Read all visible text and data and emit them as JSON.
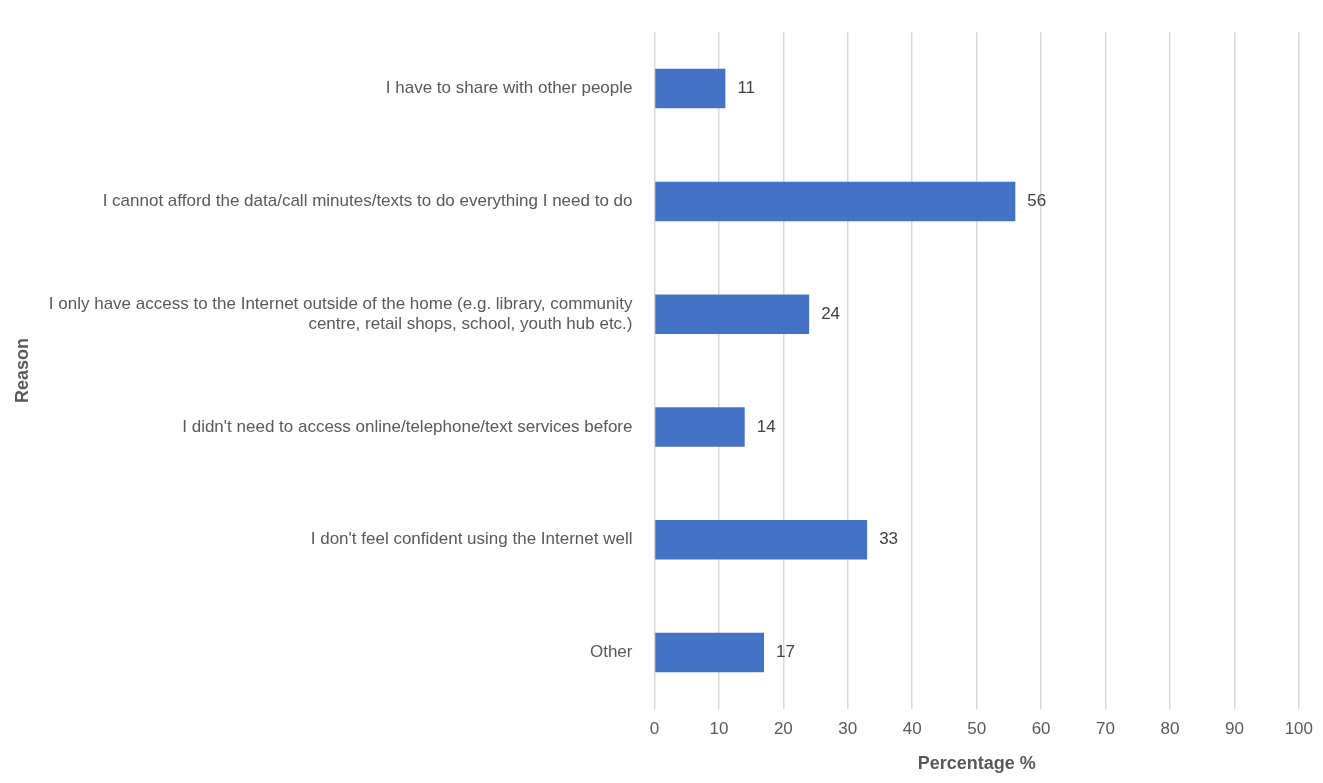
{
  "chart_data": {
    "type": "bar",
    "orientation": "horizontal",
    "xlabel": "Percentage %",
    "ylabel": "Reason",
    "categories": [
      "I have to share with other people",
      "I cannot afford the data/call minutes/texts to do everything I need to do",
      "I only have access to the Internet outside of the home (e.g. library, community centre, retail shops, school, youth hub etc.)",
      "I didn't need to access online/telephone/text services before",
      "I don't feel confident using the Internet well",
      "Other"
    ],
    "values": [
      11,
      56,
      24,
      14,
      33,
      17
    ],
    "color": "#4472c4",
    "data_labels": true,
    "xlim": [
      0,
      100
    ],
    "xticks": [
      0,
      10,
      20,
      30,
      40,
      50,
      60,
      70,
      80,
      90,
      100
    ],
    "grid": "x",
    "legend": false
  }
}
